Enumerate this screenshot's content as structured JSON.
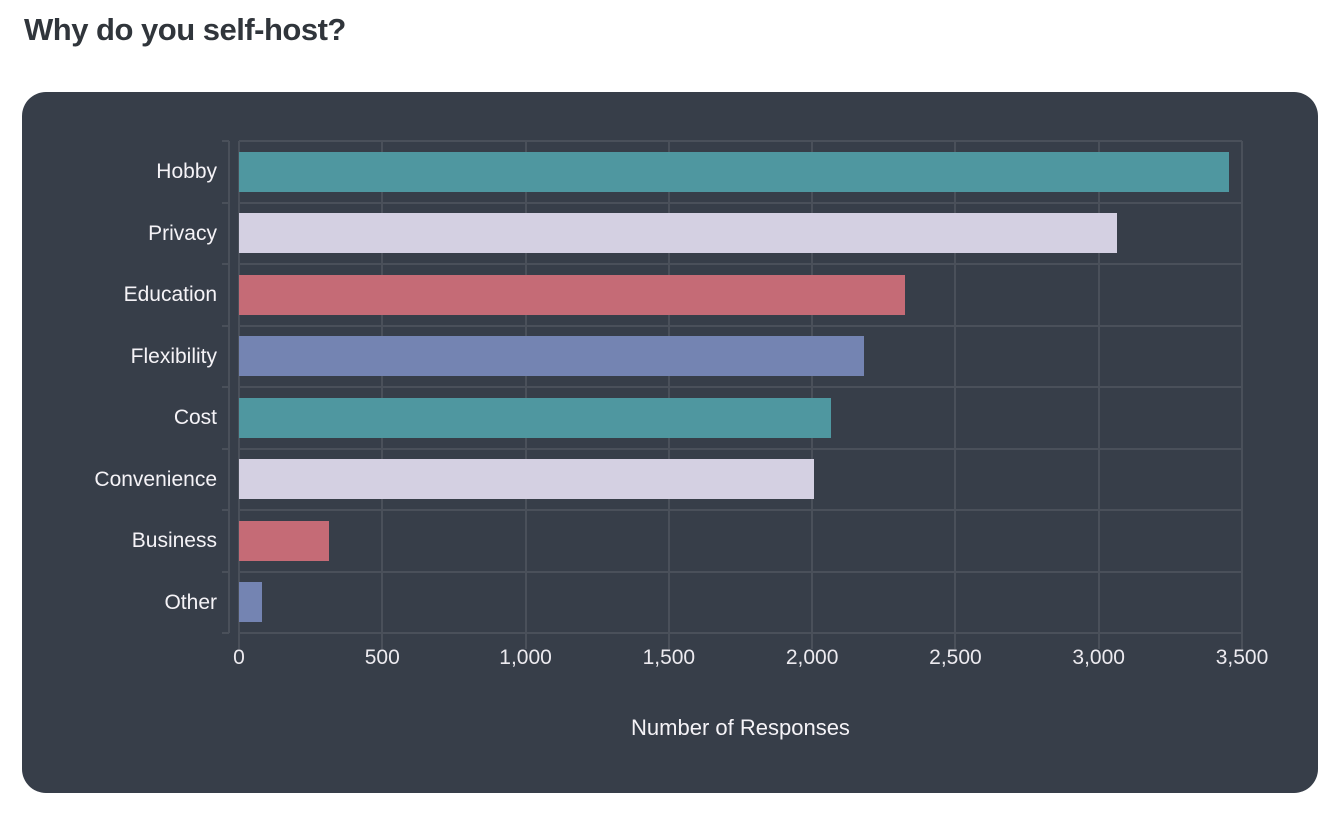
{
  "page": {
    "title": "Why do you self-host?"
  },
  "theme": {
    "page_background": "#ffffff",
    "title_color": "#30353b",
    "card_background": "#373e49",
    "grid_color": "#4a505a",
    "label_color": "#f5f3f7",
    "tick_label_color": "#eceaef"
  },
  "chart_data": {
    "type": "bar",
    "orientation": "horizontal",
    "title": "Why do you self-host?",
    "categories": [
      "Hobby",
      "Privacy",
      "Education",
      "Flexibility",
      "Cost",
      "Convenience",
      "Business",
      "Other"
    ],
    "values": [
      3455,
      3065,
      2325,
      2180,
      2065,
      2005,
      315,
      80
    ],
    "bar_colors": [
      "#4f97a0",
      "#d4d0e2",
      "#c56b76",
      "#7484b2",
      "#4f97a0",
      "#d4d0e2",
      "#c56b76",
      "#7484b2"
    ],
    "xlabel": "Number of Responses",
    "ylabel": "",
    "xlim": [
      0,
      3500
    ],
    "xticks": [
      {
        "value": 0,
        "label": "0"
      },
      {
        "value": 500,
        "label": "500"
      },
      {
        "value": 1000,
        "label": "1,000"
      },
      {
        "value": 1500,
        "label": "1,500"
      },
      {
        "value": 2000,
        "label": "2,000"
      },
      {
        "value": 2500,
        "label": "2,500"
      },
      {
        "value": 3000,
        "label": "3,000"
      },
      {
        "value": 3500,
        "label": "3,500"
      }
    ],
    "grid": true,
    "legend": false
  }
}
